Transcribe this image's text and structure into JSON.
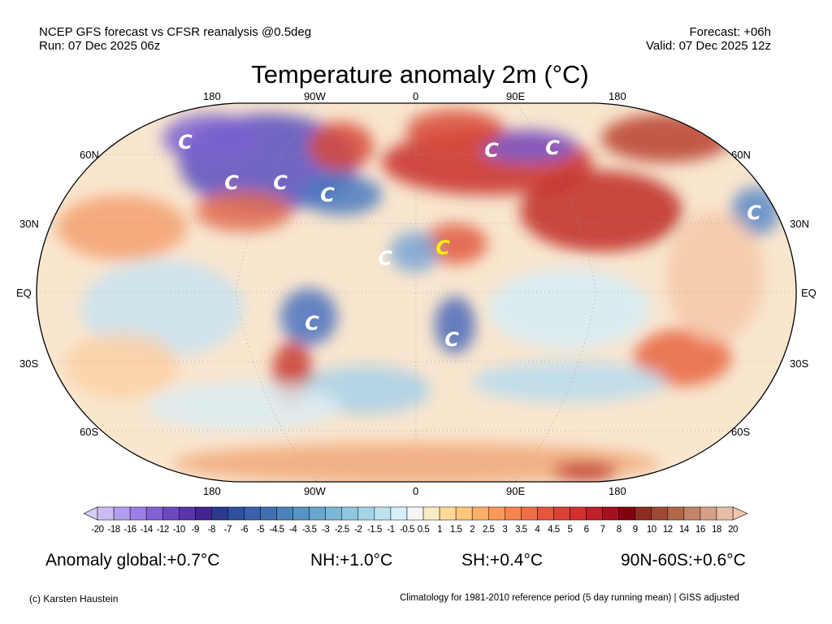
{
  "header": {
    "line1_left": "NCEP GFS forecast vs CFSR reanalysis @0.5deg",
    "line2_left": "Run: 07 Dec 2025 06z",
    "line1_right": "Forecast: +06h",
    "line2_right": "Valid: 07 Dec 2025 12z"
  },
  "title": "Temperature anomaly 2m (°C)",
  "map": {
    "lon_labels": [
      "180",
      "90W",
      "0",
      "90E",
      "180"
    ],
    "lat_labels": [
      "60N",
      "30N",
      "EQ",
      "30S",
      "60S"
    ],
    "marker_label": "C",
    "marker_colors": {
      "cold": "#ffffff",
      "highlight": "#ffee00"
    }
  },
  "colorbar": {
    "labels": [
      "-20",
      "-18",
      "-16",
      "-14",
      "-12",
      "-10",
      "-9",
      "-8",
      "-7",
      "-6",
      "-5",
      "-4.5",
      "-4",
      "-3.5",
      "-3",
      "-2.5",
      "-2",
      "-1.5",
      "-1",
      "-0.5",
      "0.5",
      "1",
      "1.5",
      "2",
      "2.5",
      "3",
      "3.5",
      "4",
      "4.5",
      "5",
      "6",
      "7",
      "8",
      "9",
      "10",
      "12",
      "14",
      "16",
      "18",
      "20"
    ],
    "colors": [
      "#cbbbf5",
      "#b29ef0",
      "#9b7fe6",
      "#8462d4",
      "#6d48c0",
      "#5a34ad",
      "#44228f",
      "#2b3a8c",
      "#30509f",
      "#3b60ab",
      "#4070b0",
      "#4a82bb",
      "#5594c4",
      "#66a6cf",
      "#7ab7d8",
      "#90c6df",
      "#a5d4e7",
      "#bde3f0",
      "#d6effa",
      "#f5f5f5",
      "#f8ebc0",
      "#fcd996",
      "#fdc67c",
      "#fdb168",
      "#fb9a58",
      "#f8834d",
      "#f26c45",
      "#e8543c",
      "#de3f33",
      "#d3302d",
      "#c02026",
      "#a70f1e",
      "#85000f",
      "#8c2e1e",
      "#9c4a33",
      "#b06848",
      "#c5836a",
      "#d6a088",
      "#e7bea8"
    ],
    "low_extend_color": "#d8ccf8",
    "high_extend_color": "#f2c4b0"
  },
  "stats": {
    "global": "Anomaly global:+0.7°C",
    "nh": "NH:+1.0°C",
    "sh": "SH:+0.4°C",
    "band": "90N-60S:+0.6°C"
  },
  "footer": {
    "copyright": "(c) Karsten Haustein",
    "note": "Climatology for 1981-2010 reference period (5 day running mean) | GISS adjusted"
  }
}
